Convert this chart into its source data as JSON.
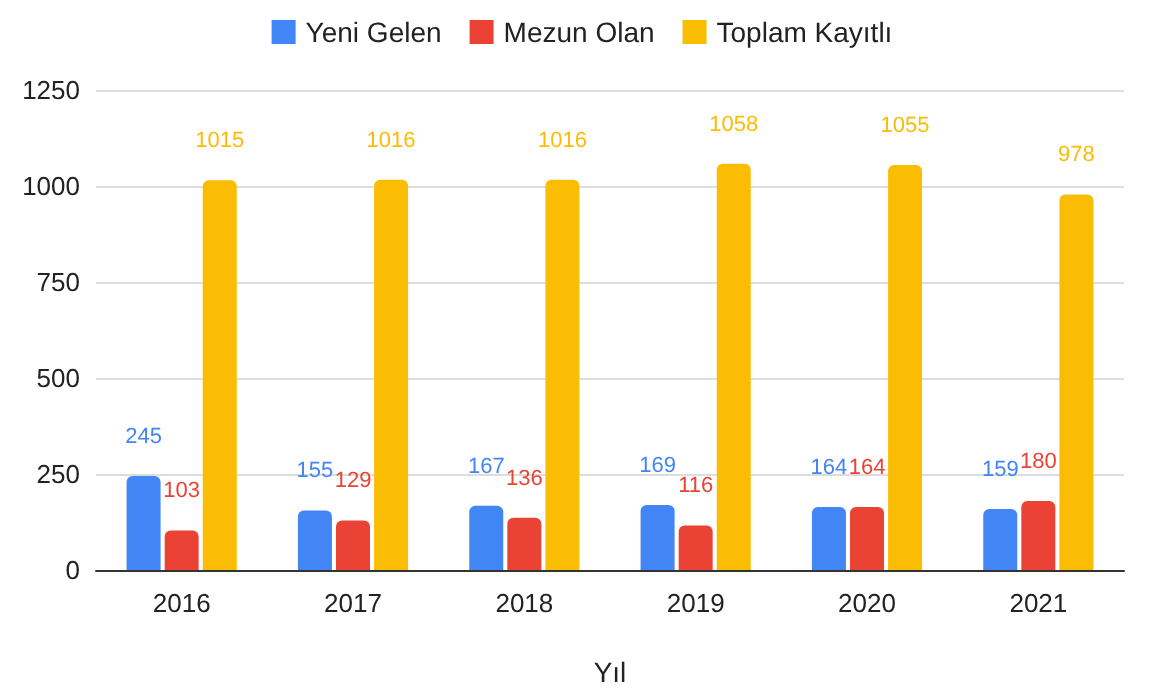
{
  "chart_data": {
    "type": "bar",
    "xlabel": "Yıl",
    "categories": [
      "2016",
      "2017",
      "2018",
      "2019",
      "2020",
      "2021"
    ],
    "series": [
      {
        "name": "Yeni Gelen",
        "color": "#4285f4",
        "values": [
          245,
          155,
          167,
          169,
          164,
          159
        ]
      },
      {
        "name": "Mezun Olan",
        "color": "#ea4335",
        "values": [
          103,
          129,
          136,
          116,
          164,
          180
        ]
      },
      {
        "name": "Toplam Kayıtlı",
        "color": "#fbbc04",
        "values": [
          1015,
          1016,
          1016,
          1058,
          1055,
          978
        ]
      }
    ],
    "ylim": [
      0,
      1250
    ],
    "yticks": [
      0,
      250,
      500,
      750,
      1000,
      1250
    ],
    "grid": "y",
    "legend": "top",
    "data_labels": true
  }
}
